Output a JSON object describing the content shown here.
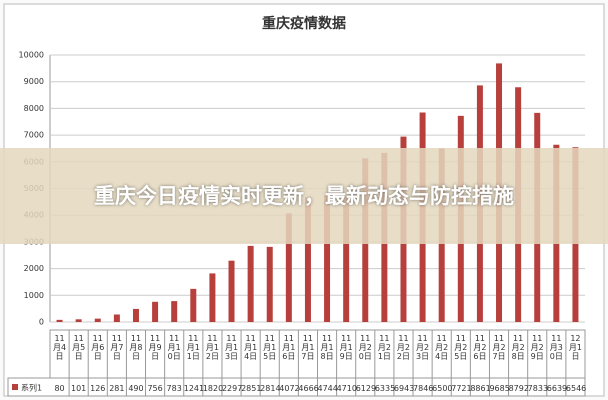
{
  "chart_data": {
    "type": "bar",
    "title": "重庆疫情数据",
    "categories": [
      "11月4日",
      "11月5日",
      "11月6日",
      "11月7日",
      "11月8日",
      "11月9日",
      "11月10日",
      "11月11日",
      "11月12日",
      "11月13日",
      "11月14日",
      "11月15日",
      "11月16日",
      "11月17日",
      "11月18日",
      "11月19日",
      "11月20日",
      "11月21日",
      "11月22日",
      "11月23日",
      "11月24日",
      "11月25日",
      "11月26日",
      "11月27日",
      "11月28日",
      "11月29日",
      "11月30日",
      "12月1日"
    ],
    "series": [
      {
        "name": "系列1",
        "color": "#b8403c",
        "values": [
          80,
          101,
          126,
          281,
          490,
          756,
          783,
          1241,
          1820,
          2297,
          2851,
          2814,
          4072,
          4666,
          4744,
          4710,
          6129,
          6335,
          6943,
          7846,
          6500,
          7721,
          8861,
          9685,
          8792,
          7833,
          6639,
          6546
        ]
      }
    ],
    "ylim": [
      0,
      10000
    ],
    "yticks": [
      0,
      1000,
      2000,
      3000,
      4000,
      5000,
      6000,
      7000,
      8000,
      9000,
      10000
    ],
    "grid": true
  },
  "overlay": {
    "headline": "重庆今日疫情实时更新，最新动态与防控措施"
  }
}
